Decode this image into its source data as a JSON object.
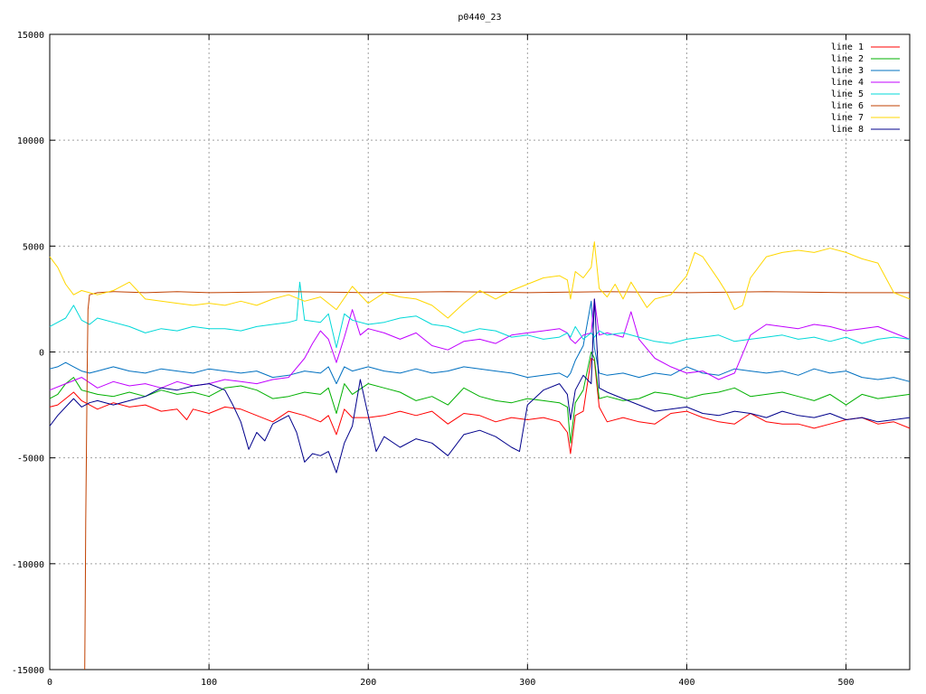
{
  "chart_data": {
    "type": "line",
    "title": "p0440_23",
    "xlabel": "",
    "ylabel": "",
    "xlim": [
      0,
      540
    ],
    "ylim": [
      -15000,
      15000
    ],
    "x_ticks": [
      0,
      100,
      200,
      300,
      400,
      500
    ],
    "y_ticks": [
      -15000,
      -10000,
      -5000,
      0,
      5000,
      10000,
      15000
    ],
    "x_tick_labels": [
      "0",
      "100",
      "200",
      "300",
      "400",
      "500"
    ],
    "y_tick_labels": [
      "-15000",
      "-10000",
      "-5000",
      "0",
      "5000",
      "10000",
      "15000"
    ],
    "grid": true,
    "legend_position": "top-right",
    "series": [
      {
        "name": "line 1",
        "color": "#ff0000",
        "x": [
          0,
          5,
          10,
          15,
          20,
          25,
          30,
          40,
          50,
          60,
          70,
          80,
          86,
          90,
          100,
          110,
          120,
          130,
          140,
          150,
          160,
          170,
          175,
          180,
          185,
          190,
          200,
          210,
          220,
          230,
          240,
          250,
          260,
          270,
          280,
          290,
          300,
          310,
          320,
          325,
          327,
          330,
          335,
          340,
          342,
          345,
          350,
          360,
          370,
          380,
          390,
          400,
          410,
          420,
          430,
          440,
          450,
          460,
          470,
          480,
          490,
          500,
          510,
          520,
          530,
          540
        ],
        "y": [
          -2600,
          -2500,
          -2200,
          -1900,
          -2300,
          -2500,
          -2700,
          -2400,
          -2600,
          -2500,
          -2800,
          -2700,
          -3200,
          -2700,
          -2900,
          -2600,
          -2700,
          -3000,
          -3300,
          -2800,
          -3000,
          -3300,
          -3000,
          -3900,
          -2700,
          -3100,
          -3100,
          -3000,
          -2800,
          -3000,
          -2800,
          -3400,
          -2900,
          -3000,
          -3300,
          -3100,
          -3200,
          -3100,
          -3300,
          -3800,
          -4800,
          -3000,
          -2800,
          -300,
          -400,
          -2600,
          -3300,
          -3100,
          -3300,
          -3400,
          -2900,
          -2800,
          -3100,
          -3300,
          -3400,
          -2900,
          -3300,
          -3400,
          -3400,
          -3600,
          -3400,
          -3200,
          -3100,
          -3400,
          -3300,
          -3600
        ]
      },
      {
        "name": "line 2",
        "color": "#00b000",
        "x": [
          0,
          5,
          10,
          15,
          20,
          25,
          30,
          40,
          50,
          60,
          70,
          80,
          90,
          100,
          110,
          120,
          130,
          140,
          150,
          160,
          170,
          175,
          180,
          185,
          190,
          200,
          210,
          220,
          230,
          240,
          250,
          260,
          270,
          280,
          290,
          300,
          310,
          320,
          325,
          327,
          330,
          335,
          340,
          342,
          345,
          350,
          360,
          370,
          380,
          390,
          400,
          410,
          420,
          430,
          440,
          450,
          460,
          470,
          480,
          490,
          500,
          510,
          520,
          530,
          540
        ],
        "y": [
          -2200,
          -2000,
          -1500,
          -1200,
          -1800,
          -1900,
          -2000,
          -2100,
          -1900,
          -2100,
          -1800,
          -2000,
          -1900,
          -2100,
          -1700,
          -1600,
          -1800,
          -2200,
          -2100,
          -1900,
          -2000,
          -1700,
          -2900,
          -1500,
          -2000,
          -1500,
          -1700,
          -1900,
          -2300,
          -2100,
          -2500,
          -1700,
          -2100,
          -2300,
          -2400,
          -2200,
          -2300,
          -2400,
          -2600,
          -4300,
          -2400,
          -1800,
          0,
          -300,
          -2200,
          -2100,
          -2300,
          -2200,
          -1900,
          -2000,
          -2200,
          -2000,
          -1900,
          -1700,
          -2100,
          -2000,
          -1900,
          -2100,
          -2300,
          -2000,
          -2500,
          -2000,
          -2200,
          -2100,
          -2000
        ]
      },
      {
        "name": "line 3",
        "color": "#0070c0",
        "x": [
          0,
          5,
          10,
          15,
          20,
          25,
          30,
          40,
          50,
          60,
          70,
          80,
          90,
          100,
          110,
          120,
          130,
          140,
          150,
          160,
          170,
          175,
          180,
          185,
          190,
          200,
          210,
          220,
          230,
          240,
          250,
          260,
          270,
          280,
          290,
          300,
          310,
          320,
          325,
          327,
          330,
          335,
          340,
          342,
          345,
          350,
          360,
          370,
          380,
          390,
          400,
          410,
          420,
          430,
          440,
          450,
          460,
          470,
          480,
          490,
          500,
          510,
          520,
          530,
          540
        ],
        "y": [
          -800,
          -700,
          -500,
          -700,
          -900,
          -1000,
          -900,
          -700,
          -900,
          -1000,
          -800,
          -900,
          -1000,
          -800,
          -900,
          -1000,
          -900,
          -1200,
          -1100,
          -900,
          -1000,
          -700,
          -1500,
          -700,
          -900,
          -700,
          -900,
          -1000,
          -800,
          -1000,
          -900,
          -700,
          -800,
          -900,
          -1000,
          -1200,
          -1100,
          -1000,
          -1200,
          -1000,
          -400,
          300,
          2400,
          200,
          -1000,
          -1100,
          -1000,
          -1200,
          -1000,
          -1100,
          -700,
          -1000,
          -1100,
          -800,
          -900,
          -1000,
          -900,
          -1100,
          -800,
          -1000,
          -900,
          -1200,
          -1300,
          -1200,
          -1400
        ]
      },
      {
        "name": "line 4",
        "color": "#c000ff",
        "x": [
          0,
          10,
          20,
          30,
          40,
          50,
          60,
          70,
          80,
          90,
          100,
          110,
          120,
          130,
          140,
          150,
          160,
          165,
          170,
          175,
          180,
          185,
          190,
          195,
          200,
          210,
          220,
          230,
          240,
          250,
          260,
          270,
          280,
          290,
          300,
          310,
          320,
          325,
          327,
          330,
          335,
          340,
          342,
          345,
          350,
          360,
          365,
          370,
          380,
          390,
          400,
          410,
          420,
          430,
          440,
          450,
          460,
          470,
          480,
          490,
          500,
          510,
          520,
          530,
          540
        ],
        "y": [
          -1800,
          -1500,
          -1200,
          -1700,
          -1400,
          -1600,
          -1500,
          -1700,
          -1400,
          -1600,
          -1500,
          -1300,
          -1400,
          -1500,
          -1300,
          -1200,
          -300,
          400,
          1000,
          600,
          -500,
          700,
          2000,
          800,
          1100,
          900,
          600,
          900,
          300,
          100,
          500,
          600,
          400,
          800,
          900,
          1000,
          1100,
          900,
          600,
          400,
          800,
          900,
          2500,
          800,
          900,
          700,
          1900,
          600,
          -300,
          -700,
          -1000,
          -900,
          -1300,
          -1000,
          800,
          1300,
          1200,
          1100,
          1300,
          1200,
          1000,
          1100,
          1200,
          900,
          600
        ]
      },
      {
        "name": "line 5",
        "color": "#00d8d8",
        "x": [
          0,
          5,
          10,
          15,
          20,
          25,
          30,
          40,
          50,
          60,
          70,
          80,
          90,
          100,
          110,
          120,
          130,
          140,
          150,
          155,
          157,
          160,
          170,
          175,
          180,
          185,
          190,
          200,
          210,
          220,
          230,
          240,
          250,
          260,
          270,
          280,
          290,
          300,
          310,
          320,
          325,
          327,
          330,
          335,
          340,
          342,
          345,
          350,
          360,
          370,
          380,
          390,
          400,
          410,
          420,
          430,
          440,
          450,
          460,
          470,
          480,
          490,
          500,
          510,
          520,
          530,
          540
        ],
        "y": [
          1200,
          1400,
          1600,
          2200,
          1500,
          1300,
          1600,
          1400,
          1200,
          900,
          1100,
          1000,
          1200,
          1100,
          1100,
          1000,
          1200,
          1300,
          1400,
          1500,
          3300,
          1500,
          1400,
          1800,
          200,
          1800,
          1500,
          1300,
          1400,
          1600,
          1700,
          1300,
          1200,
          900,
          1100,
          1000,
          700,
          800,
          600,
          700,
          900,
          700,
          1200,
          600,
          900,
          700,
          1000,
          800,
          900,
          700,
          500,
          400,
          600,
          700,
          800,
          500,
          600,
          700,
          800,
          600,
          700,
          500,
          700,
          400,
          600,
          700,
          600
        ]
      },
      {
        "name": "line 6",
        "color": "#c04000",
        "x": [
          22,
          22.3,
          22.6,
          23,
          23.5,
          24,
          25,
          30,
          40,
          60,
          80,
          100,
          150,
          200,
          250,
          300,
          350,
          400,
          450,
          500,
          540
        ],
        "y": [
          -15000,
          -11500,
          -8000,
          -5000,
          -1000,
          2000,
          2700,
          2800,
          2850,
          2800,
          2850,
          2800,
          2850,
          2800,
          2850,
          2800,
          2850,
          2800,
          2850,
          2800,
          2800
        ]
      },
      {
        "name": "line 7",
        "color": "#ffd700",
        "x": [
          0,
          5,
          10,
          15,
          20,
          25,
          30,
          40,
          50,
          60,
          70,
          80,
          90,
          100,
          110,
          120,
          130,
          140,
          150,
          160,
          170,
          180,
          190,
          200,
          210,
          220,
          230,
          240,
          250,
          260,
          270,
          280,
          290,
          300,
          310,
          320,
          325,
          327,
          330,
          335,
          340,
          342,
          345,
          350,
          355,
          360,
          365,
          370,
          375,
          380,
          390,
          400,
          405,
          410,
          420,
          425,
          430,
          435,
          440,
          450,
          460,
          470,
          480,
          490,
          500,
          510,
          520,
          530,
          540
        ],
        "y": [
          4500,
          4000,
          3200,
          2700,
          2900,
          2800,
          2700,
          2900,
          3300,
          2500,
          2400,
          2300,
          2200,
          2300,
          2200,
          2400,
          2200,
          2500,
          2700,
          2400,
          2600,
          2000,
          3100,
          2300,
          2800,
          2600,
          2500,
          2200,
          1600,
          2300,
          2900,
          2500,
          2900,
          3200,
          3500,
          3600,
          3400,
          2500,
          3800,
          3500,
          4000,
          5200,
          3000,
          2600,
          3200,
          2500,
          3300,
          2700,
          2100,
          2500,
          2700,
          3600,
          4700,
          4500,
          3400,
          2800,
          2000,
          2200,
          3500,
          4500,
          4700,
          4800,
          4700,
          4900,
          4700,
          4400,
          4200,
          2800,
          2500
        ]
      },
      {
        "name": "line 8",
        "color": "#00008b",
        "x": [
          0,
          5,
          10,
          15,
          20,
          25,
          30,
          40,
          50,
          60,
          70,
          80,
          90,
          100,
          110,
          115,
          120,
          125,
          130,
          135,
          140,
          150,
          155,
          160,
          165,
          170,
          175,
          180,
          185,
          190,
          195,
          200,
          205,
          210,
          220,
          230,
          240,
          250,
          260,
          270,
          280,
          290,
          295,
          300,
          310,
          320,
          325,
          327,
          330,
          335,
          340,
          342,
          345,
          350,
          360,
          370,
          380,
          390,
          400,
          410,
          420,
          430,
          440,
          450,
          460,
          470,
          480,
          490,
          500,
          510,
          520,
          530,
          540
        ],
        "y": [
          -3500,
          -3000,
          -2600,
          -2200,
          -2600,
          -2400,
          -2300,
          -2500,
          -2300,
          -2100,
          -1700,
          -1800,
          -1600,
          -1500,
          -1800,
          -2500,
          -3300,
          -4600,
          -3800,
          -4200,
          -3400,
          -3000,
          -3800,
          -5200,
          -4800,
          -4900,
          -4700,
          -5700,
          -4300,
          -3500,
          -1300,
          -3000,
          -4700,
          -4000,
          -4500,
          -4100,
          -4300,
          -4900,
          -3900,
          -3700,
          -4000,
          -4500,
          -4700,
          -2500,
          -1800,
          -1500,
          -2000,
          -3200,
          -1800,
          -1100,
          -1500,
          2500,
          -1700,
          -1900,
          -2200,
          -2500,
          -2800,
          -2700,
          -2600,
          -2900,
          -3000,
          -2800,
          -2900,
          -3100,
          -2800,
          -3000,
          -3100,
          -2900,
          -3200,
          -3100,
          -3300,
          -3200,
          -3100
        ]
      }
    ]
  }
}
